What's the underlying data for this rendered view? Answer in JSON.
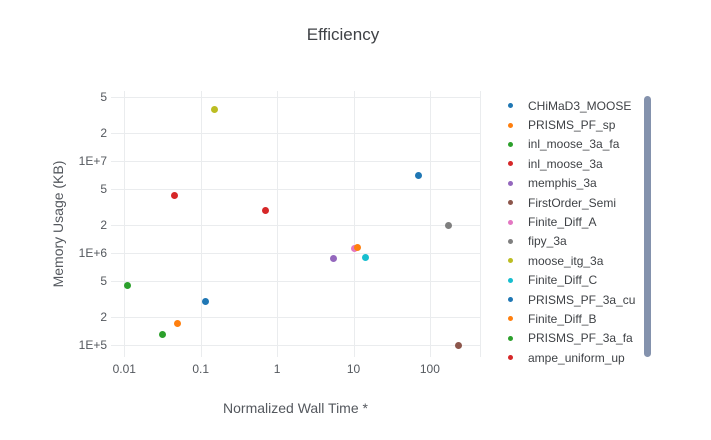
{
  "title": "Efficiency",
  "axes": {
    "x": {
      "title": "Normalized Wall Time *",
      "ticks": [
        {
          "v": 0.01,
          "label": "0.01"
        },
        {
          "v": 0.1,
          "label": "0.1"
        },
        {
          "v": 1,
          "label": "1"
        },
        {
          "v": 10,
          "label": "10"
        },
        {
          "v": 100,
          "label": "100"
        }
      ]
    },
    "y": {
      "title": "Memory Usage (KB)",
      "ticks": [
        {
          "v": 50000000.0,
          "label": "5"
        },
        {
          "v": 20000000.0,
          "label": "2"
        },
        {
          "v": 10000000.0,
          "label": "1E+7"
        },
        {
          "v": 5000000.0,
          "label": "5"
        },
        {
          "v": 2000000.0,
          "label": "2"
        },
        {
          "v": 1000000.0,
          "label": "1E+6"
        },
        {
          "v": 500000.0,
          "label": "5"
        },
        {
          "v": 200000.0,
          "label": "2"
        },
        {
          "v": 100000.0,
          "label": "1E+5"
        }
      ]
    }
  },
  "legend": {
    "scrollbar_color": "#8492ad"
  },
  "chart_data": {
    "type": "scatter",
    "title": "Efficiency",
    "xlabel": "Normalized Wall Time *",
    "ylabel": "Memory Usage (KB)",
    "x_scale": "log",
    "y_scale": "log",
    "xlim": [
      0.0067,
      450
    ],
    "ylim": [
      75000,
      58000000
    ],
    "grid": true,
    "legend_position": "right",
    "series": [
      {
        "name": "CHiMaD3_MOOSE",
        "color": "#1f77b4",
        "points": [
          [
            71,
            6900000
          ]
        ]
      },
      {
        "name": "PRISMS_PF_sp",
        "color": "#ff7f0e",
        "points": [
          [
            0.049,
            170000
          ]
        ]
      },
      {
        "name": "inl_moose_3a_fa",
        "color": "#2ca02c",
        "points": [
          [
            0.011,
            440000
          ]
        ]
      },
      {
        "name": "inl_moose_3a",
        "color": "#d62728",
        "points": [
          [
            0.7,
            2900000
          ]
        ]
      },
      {
        "name": "memphis_3a",
        "color": "#9467bd",
        "points": [
          [
            5.4,
            870000
          ]
        ]
      },
      {
        "name": "FirstOrder_Semi",
        "color": "#8c564b",
        "points": [
          [
            235,
            100000
          ]
        ]
      },
      {
        "name": "Finite_Diff_A",
        "color": "#e377c2",
        "points": [
          [
            10.2,
            1120000
          ]
        ]
      },
      {
        "name": "fipy_3a",
        "color": "#7f7f7f",
        "points": [
          [
            175,
            2000000
          ]
        ]
      },
      {
        "name": "moose_itg_3a",
        "color": "#bcbd22",
        "points": [
          [
            0.153,
            36000000
          ]
        ]
      },
      {
        "name": "Finite_Diff_C",
        "color": "#17becf",
        "points": [
          [
            14.2,
            900000
          ]
        ]
      },
      {
        "name": "PRISMS_PF_3a_cu",
        "color": "#1f77b4",
        "points": [
          [
            0.116,
            300000
          ]
        ]
      },
      {
        "name": "Finite_Diff_B",
        "color": "#ff7f0e",
        "points": [
          [
            11.2,
            1140000
          ]
        ]
      },
      {
        "name": "PRISMS_PF_3a_fa",
        "color": "#2ca02c",
        "points": [
          [
            0.032,
            130000
          ]
        ]
      },
      {
        "name": "ampe_uniform_up",
        "color": "#d62728",
        "points": [
          [
            0.045,
            4200000
          ]
        ]
      }
    ]
  }
}
